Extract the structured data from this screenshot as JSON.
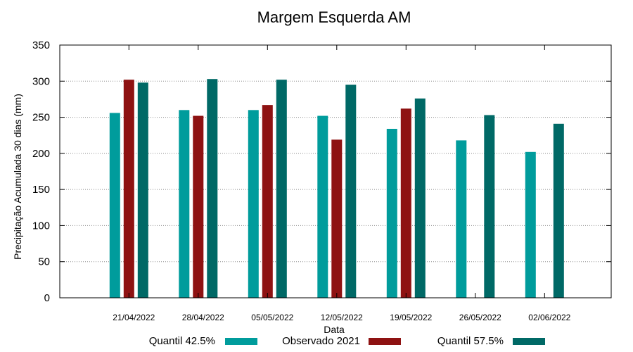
{
  "chart_data": {
    "type": "bar",
    "title": "Margem Esquerda AM",
    "xlabel": "Data",
    "ylabel": "Precipitação Acumulada 30 dias (mm)",
    "ylim": [
      0,
      350
    ],
    "yticks": [
      0,
      50,
      100,
      150,
      200,
      250,
      300,
      350
    ],
    "grid": true,
    "legend_position": "bottom",
    "categories": [
      "21/04/2022",
      "28/04/2022",
      "05/05/2022",
      "12/05/2022",
      "19/05/2022",
      "26/05/2022",
      "02/06/2022"
    ],
    "series": [
      {
        "name": "Quantil 42.5%",
        "color": "#009c9c",
        "values": [
          256,
          260,
          260,
          252,
          234,
          218,
          202
        ]
      },
      {
        "name": "Observado 2021",
        "color": "#8e1212",
        "values": [
          302,
          252,
          267,
          219,
          262,
          null,
          null
        ]
      },
      {
        "name": "Quantil 57.5%",
        "color": "#006966",
        "values": [
          298,
          303,
          302,
          295,
          276,
          253,
          241
        ]
      }
    ]
  }
}
